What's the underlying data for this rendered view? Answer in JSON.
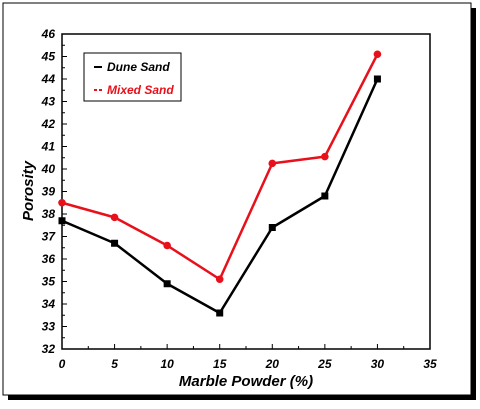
{
  "chart_data": {
    "type": "line",
    "title": "",
    "xlabel": "Marble Powder (%)",
    "ylabel": "Porosity",
    "xlim": [
      0,
      35
    ],
    "ylim": [
      32,
      46
    ],
    "x_ticks": [
      "0",
      "5",
      "10",
      "15",
      "20",
      "25",
      "30",
      "35"
    ],
    "y_ticks": [
      "32",
      "33",
      "34",
      "35",
      "36",
      "37",
      "38",
      "39",
      "40",
      "41",
      "42",
      "43",
      "44",
      "45",
      "46"
    ],
    "x": [
      0,
      5,
      10,
      15,
      20,
      25,
      30
    ],
    "series": [
      {
        "name": "Dune Sand",
        "color": "#000000",
        "marker": "square",
        "values": [
          37.7,
          36.7,
          34.9,
          33.6,
          37.4,
          38.8,
          44.0
        ]
      },
      {
        "name": "Mixed Sand",
        "color": "#e8101a",
        "marker": "circle",
        "values": [
          38.5,
          37.85,
          36.6,
          35.1,
          40.25,
          40.55,
          45.1
        ]
      }
    ],
    "legend_position": "top-left",
    "grid": false
  }
}
